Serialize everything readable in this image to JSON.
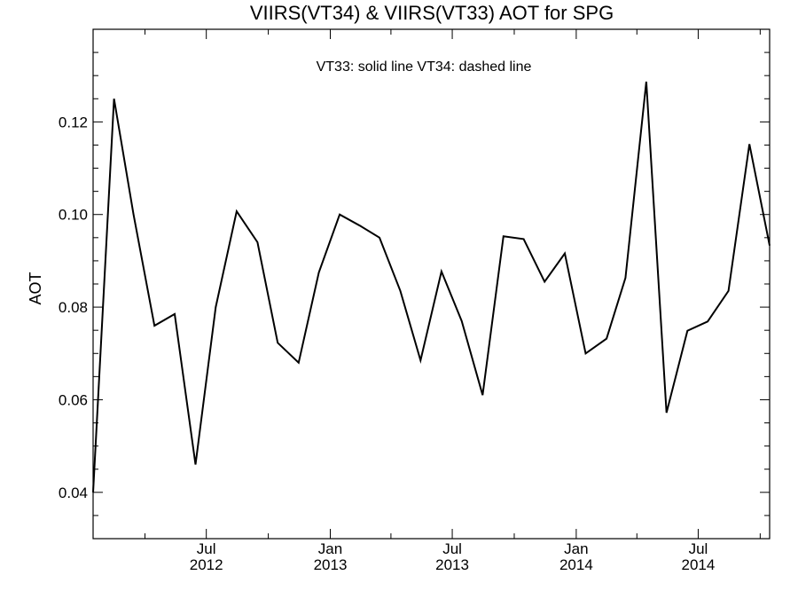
{
  "chart_data": {
    "type": "line",
    "title": "VIIRS(VT34) & VIIRS(VT33)  AOT for SPG",
    "ylabel": "AOT",
    "xlabel": "",
    "annotation": "VT33: solid line   VT34: dashed line",
    "ylim": [
      0.03,
      0.14
    ],
    "xlim": [
      "2012-01-15",
      "2014-10-15"
    ],
    "y_ticks": [
      {
        "value": 0.04,
        "label": "0.04"
      },
      {
        "value": 0.06,
        "label": "0.06"
      },
      {
        "value": 0.08,
        "label": "0.08"
      },
      {
        "value": 0.1,
        "label": "0.10"
      },
      {
        "value": 0.12,
        "label": "0.12"
      }
    ],
    "x_ticks": [
      {
        "value": "2012-07-01",
        "month": "Jul",
        "year": "2012"
      },
      {
        "value": "2013-01-01",
        "month": "Jan",
        "year": "2013"
      },
      {
        "value": "2013-07-01",
        "month": "Jul",
        "year": "2013"
      },
      {
        "value": "2014-01-01",
        "month": "Jan",
        "year": "2014"
      },
      {
        "value": "2014-07-01",
        "month": "Jul",
        "year": "2014"
      }
    ],
    "grid": false,
    "series": [
      {
        "line_style": "solid",
        "color": "#000000",
        "points": [
          {
            "x": "2012-01-15",
            "y": 0.04
          },
          {
            "x": "2012-02-15",
            "y": 0.125
          },
          {
            "x": "2012-03-15",
            "y": 0.1
          },
          {
            "x": "2012-04-15",
            "y": 0.076
          },
          {
            "x": "2012-05-15",
            "y": 0.0785
          },
          {
            "x": "2012-06-15",
            "y": 0.046
          },
          {
            "x": "2012-07-15",
            "y": 0.08
          },
          {
            "x": "2012-08-15",
            "y": 0.1007
          },
          {
            "x": "2012-09-15",
            "y": 0.094
          },
          {
            "x": "2012-10-15",
            "y": 0.0723
          },
          {
            "x": "2012-11-15",
            "y": 0.068
          },
          {
            "x": "2012-12-15",
            "y": 0.0875
          },
          {
            "x": "2013-01-15",
            "y": 0.1
          },
          {
            "x": "2013-02-15",
            "y": 0.0975
          },
          {
            "x": "2013-03-15",
            "y": 0.095
          },
          {
            "x": "2013-04-15",
            "y": 0.0835
          },
          {
            "x": "2013-05-15",
            "y": 0.0685
          },
          {
            "x": "2013-06-15",
            "y": 0.0877
          },
          {
            "x": "2013-07-15",
            "y": 0.077
          },
          {
            "x": "2013-08-15",
            "y": 0.061
          },
          {
            "x": "2013-09-15",
            "y": 0.0953
          },
          {
            "x": "2013-10-15",
            "y": 0.0947
          },
          {
            "x": "2013-11-15",
            "y": 0.0855
          },
          {
            "x": "2013-12-15",
            "y": 0.0916
          },
          {
            "x": "2014-01-15",
            "y": 0.07
          },
          {
            "x": "2014-02-15",
            "y": 0.0732
          },
          {
            "x": "2014-03-15",
            "y": 0.0863
          },
          {
            "x": "2014-04-15",
            "y": 0.1287
          },
          {
            "x": "2014-05-15",
            "y": 0.0572
          },
          {
            "x": "2014-06-15",
            "y": 0.0749
          },
          {
            "x": "2014-07-15",
            "y": 0.0769
          },
          {
            "x": "2014-08-15",
            "y": 0.0835
          },
          {
            "x": "2014-09-15",
            "y": 0.1152
          },
          {
            "x": "2014-10-15",
            "y": 0.0933
          }
        ]
      }
    ]
  }
}
